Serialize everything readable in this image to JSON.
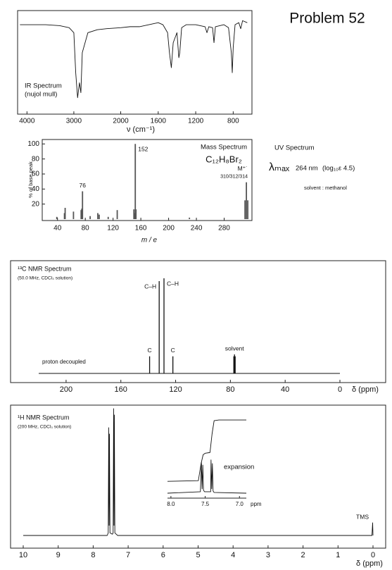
{
  "title": "Problem 52",
  "uv": {
    "title": "UV Spectrum",
    "lambda": "λₘₐₓ",
    "value": "264 nm",
    "extinction": "(log₁₀ε  4.5)",
    "solvent": "solvent : methanol"
  },
  "chart_data": [
    {
      "type": "line",
      "title": "IR Spectrum",
      "subtitle": "(nujol mull)",
      "x_label": "ν (cm⁻¹)",
      "color": "#111111",
      "x_scale_change": 2000,
      "x_scale_factor": 2,
      "xlim": [
        4200,
        600
      ],
      "ylim": [
        0,
        100
      ],
      "xticks": [
        4000,
        3000,
        2000,
        1600,
        1200,
        800
      ],
      "x": [
        4150,
        4000,
        3600,
        3300,
        3100,
        3000,
        2960,
        2920,
        2880,
        2850,
        2820,
        2700,
        2500,
        2300,
        2000,
        1900,
        1800,
        1700,
        1600,
        1550,
        1500,
        1480,
        1460,
        1440,
        1400,
        1380,
        1370,
        1350,
        1300,
        1200,
        1100,
        1080,
        1060,
        1020,
        1005,
        990,
        900,
        850,
        820,
        810,
        800,
        780,
        740,
        720,
        700,
        650
      ],
      "values": [
        88,
        88,
        88,
        87,
        85,
        80,
        40,
        15,
        30,
        20,
        60,
        80,
        83,
        84,
        85,
        86,
        86,
        88,
        90,
        88,
        80,
        60,
        45,
        70,
        80,
        55,
        60,
        85,
        88,
        88,
        86,
        80,
        86,
        85,
        70,
        86,
        88,
        85,
        60,
        40,
        65,
        88,
        90,
        84,
        92,
        90
      ]
    },
    {
      "type": "bar",
      "title": "Mass Spectrum",
      "formula": "C₁₂H₈Br₂",
      "x_label": "m / e",
      "y_label": "% of base peak",
      "color": "#555555",
      "xlim": [
        18,
        320
      ],
      "ylim": [
        0,
        104
      ],
      "xticks": [
        40,
        80,
        120,
        160,
        200,
        240,
        280
      ],
      "yticks": [
        20,
        40,
        60,
        80,
        100
      ],
      "x": [
        39,
        50,
        51,
        63,
        74,
        75,
        76,
        87,
        98,
        100,
        113,
        126,
        150,
        151,
        152,
        153,
        230,
        310,
        312,
        314
      ],
      "values": [
        3,
        8,
        15,
        10,
        12,
        14,
        37,
        4,
        8,
        6,
        3,
        12,
        13,
        8,
        100,
        13,
        2,
        25,
        49,
        25
      ],
      "annotations": [
        {
          "text": "152",
          "x": 152
        },
        {
          "text": "76",
          "x": 76
        },
        {
          "text": "M⁺˙",
          "x": 312
        },
        {
          "text": "310/312/314",
          "x": 312
        }
      ]
    },
    {
      "type": "stick",
      "title": "¹³C NMR Spectrum",
      "subtitle": "(50.0 MHz, CDCl₃ solution)",
      "note": "proton decoupled",
      "x_label": "δ (ppm)",
      "color": "#111111",
      "xlim": [
        220,
        0
      ],
      "ylim": [
        0,
        100
      ],
      "xticks": [
        200,
        160,
        120,
        80,
        40,
        0
      ],
      "x": [
        139,
        132,
        128.5,
        122,
        77.5,
        77,
        76.5
      ],
      "values": [
        18,
        97,
        100,
        18,
        18,
        20,
        18
      ],
      "annotations": [
        {
          "text": "C",
          "x": 139
        },
        {
          "text": "C–H",
          "x": 132
        },
        {
          "text": "C–H",
          "x": 128.5
        },
        {
          "text": "C",
          "x": 122
        },
        {
          "text": "solvent",
          "x": 77
        }
      ]
    },
    {
      "type": "line",
      "title": "¹H NMR Spectrum",
      "subtitle": "(200 MHz, CDCl₃ solution)",
      "x_label": "δ (ppm)",
      "color": "#111111",
      "xlim": [
        10,
        0
      ],
      "ylim": [
        0,
        100
      ],
      "xticks": [
        10,
        9,
        8,
        7,
        6,
        5,
        4,
        3,
        2,
        1,
        0
      ],
      "x": [
        10,
        7.6,
        7.57,
        7.555,
        7.545,
        7.535,
        7.52,
        7.45,
        7.43,
        7.415,
        7.405,
        7.395,
        7.38,
        7.3,
        0.03,
        0.01,
        0
      ],
      "values": [
        0,
        0,
        2,
        85,
        8,
        80,
        2,
        1,
        2,
        100,
        8,
        95,
        2,
        0,
        0,
        10,
        0
      ],
      "annotations": [
        {
          "text": "TMS",
          "x": 0.01
        }
      ]
    },
    {
      "type": "line",
      "title": "expansion",
      "x_label": "ppm",
      "color": "#111111",
      "xlim": [
        8.05,
        6.9
      ],
      "ylim": [
        0,
        100
      ],
      "xticks": [
        {
          "value": 8,
          "label": "8.0"
        },
        7.5,
        {
          "value": 7,
          "label": "7.0"
        }
      ],
      "series": [
        {
          "x": [
            8.05,
            7.57,
            7.555,
            7.545,
            7.535,
            7.525,
            7.51,
            7.42,
            7.415,
            7.405,
            7.395,
            7.385,
            7.37,
            6.9
          ],
          "values": [
            0,
            2,
            42,
            6,
            38,
            4,
            2,
            2,
            45,
            6,
            40,
            3,
            1,
            0
          ]
        },
        {
          "x": [
            8.05,
            7.6,
            7.56,
            7.53,
            7.5,
            7.43,
            7.4,
            7.37,
            7.3,
            6.9
          ],
          "values": [
            16,
            17,
            40,
            52,
            54,
            55,
            80,
            98,
            99,
            99
          ]
        }
      ]
    }
  ]
}
